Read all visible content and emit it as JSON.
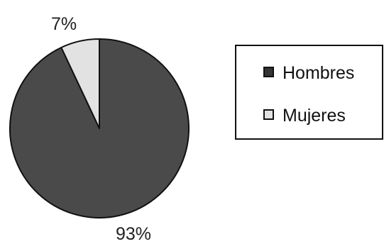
{
  "chart_data": {
    "type": "pie",
    "title": "",
    "categories": [
      "Hombres",
      "Mujeres"
    ],
    "values": [
      93,
      7
    ],
    "data_labels": [
      "93%",
      "7%"
    ],
    "colors": [
      "#4a4a4a",
      "#e2e2e2"
    ],
    "outline_color": "#111111",
    "legend": {
      "position": "right",
      "entries": [
        {
          "label": "Hombres",
          "swatch_fill": "#333333"
        },
        {
          "label": "Mujeres",
          "swatch_fill": "#e2e2e2"
        }
      ]
    }
  }
}
